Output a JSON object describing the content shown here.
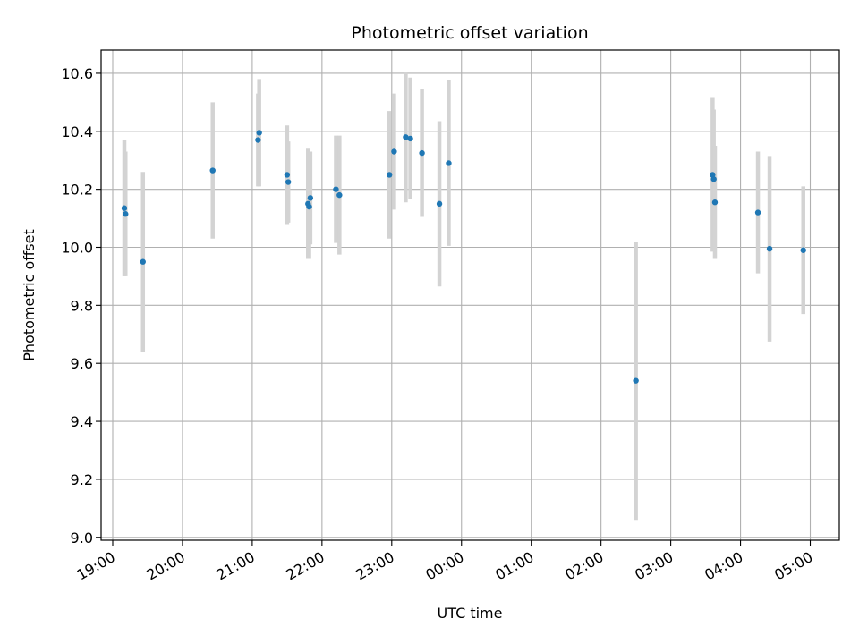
{
  "chart_data": {
    "type": "scatter",
    "title": "Photometric offset variation",
    "xlabel": "UTC time",
    "ylabel": "Photometric offset",
    "x_ticks": [
      "19:00",
      "20:00",
      "21:00",
      "22:00",
      "23:00",
      "00:00",
      "01:00",
      "02:00",
      "03:00",
      "04:00",
      "05:00"
    ],
    "y_ticks": [
      "9.0",
      "9.2",
      "9.4",
      "9.6",
      "9.8",
      "10.0",
      "10.2",
      "10.4",
      "10.6"
    ],
    "xlim": [
      "18:50",
      "05:25"
    ],
    "ylim": [
      8.99,
      10.68
    ],
    "grid": true,
    "point_color": "#1f77b4",
    "errorbar_color": "#d3d3d3",
    "series": [
      {
        "points": [
          {
            "x": "19:10",
            "y": 10.135,
            "err": 0.235
          },
          {
            "x": "19:11",
            "y": 10.115,
            "err": 0.215
          },
          {
            "x": "19:26",
            "y": 9.95,
            "err": 0.31
          },
          {
            "x": "20:26",
            "y": 10.265,
            "err": 0.235
          },
          {
            "x": "21:05",
            "y": 10.37,
            "err": 0.16
          },
          {
            "x": "21:06",
            "y": 10.395,
            "err": 0.185
          },
          {
            "x": "21:30",
            "y": 10.25,
            "err": 0.17
          },
          {
            "x": "21:31",
            "y": 10.225,
            "err": 0.14
          },
          {
            "x": "21:48",
            "y": 10.15,
            "err": 0.19
          },
          {
            "x": "21:49",
            "y": 10.14,
            "err": 0.18
          },
          {
            "x": "21:50",
            "y": 10.17,
            "err": 0.16
          },
          {
            "x": "22:12",
            "y": 10.2,
            "err": 0.185
          },
          {
            "x": "22:15",
            "y": 10.18,
            "err": 0.205
          },
          {
            "x": "22:58",
            "y": 10.25,
            "err": 0.22
          },
          {
            "x": "23:02",
            "y": 10.33,
            "err": 0.2
          },
          {
            "x": "23:12",
            "y": 10.38,
            "err": 0.225
          },
          {
            "x": "23:16",
            "y": 10.375,
            "err": 0.21
          },
          {
            "x": "23:26",
            "y": 10.325,
            "err": 0.22
          },
          {
            "x": "23:41",
            "y": 10.15,
            "err": 0.285
          },
          {
            "x": "23:49",
            "y": 10.29,
            "err": 0.285
          },
          {
            "x": "02:30",
            "y": 9.54,
            "err": 0.48
          },
          {
            "x": "03:36",
            "y": 10.25,
            "err": 0.265
          },
          {
            "x": "03:37",
            "y": 10.235,
            "err": 0.24
          },
          {
            "x": "03:38",
            "y": 10.155,
            "err": 0.195
          },
          {
            "x": "04:15",
            "y": 10.12,
            "err": 0.21
          },
          {
            "x": "04:25",
            "y": 9.995,
            "err": 0.32
          },
          {
            "x": "04:54",
            "y": 9.99,
            "err": 0.22
          }
        ]
      }
    ]
  }
}
